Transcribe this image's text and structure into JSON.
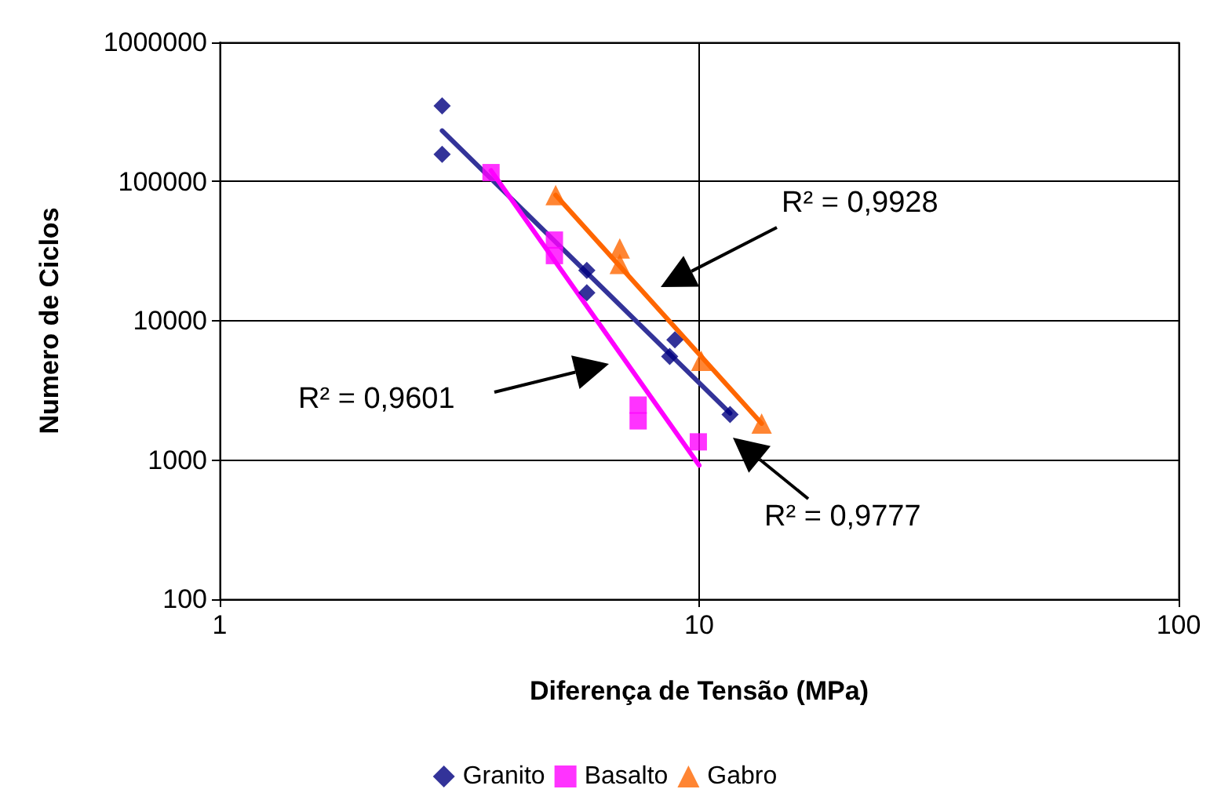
{
  "chart_data": {
    "type": "scatter",
    "xlabel": "Diferença de Tensão (MPa)",
    "ylabel": "Numero de Ciclos",
    "log": "xy",
    "grid": true,
    "legend": "bottom",
    "xlim": [
      1,
      100
    ],
    "xticks": [
      1,
      10,
      100
    ],
    "ylim": [
      100,
      1000000
    ],
    "yticks": [
      100,
      1000,
      10000,
      100000,
      1000000
    ],
    "series": [
      {
        "name": "Granito",
        "color": "#000080",
        "marker": "diamond",
        "x": [
          2.91,
          2.91,
          5.83,
          5.83,
          8.9,
          8.68,
          11.6
        ],
        "values": [
          350000,
          157000,
          23000,
          15900,
          7300,
          5540,
          2120
        ]
      },
      {
        "name": "Basalto",
        "color": "#ff00ff",
        "marker": "square",
        "x": [
          3.68,
          4.99,
          4.99,
          7.46,
          7.46,
          9.96
        ],
        "values": [
          116000,
          38000,
          29400,
          2480,
          1910,
          1350
        ]
      },
      {
        "name": "Gabro",
        "color": "#ff6600",
        "marker": "triangle",
        "x": [
          5.02,
          6.83,
          6.83,
          10.1,
          13.5
        ],
        "values": [
          80000,
          33100,
          25600,
          5160,
          1830
        ]
      },
      {
        "type": "line",
        "color": "#333399",
        "marker": "none",
        "x": [
          2.91,
          11.6
        ],
        "values": [
          232000,
          2170
        ]
      },
      {
        "type": "line",
        "color": "#ff00ff",
        "marker": "none",
        "x": [
          3.68,
          10
        ],
        "values": [
          120000,
          915
        ]
      },
      {
        "type": "line",
        "color": "#ff6600",
        "marker": "none",
        "x": [
          5.02,
          13.5
        ],
        "values": [
          80000,
          1830
        ]
      }
    ],
    "annotations": [
      "R² = 0,9928",
      "R² = 0,9601",
      "R² = 0,9777"
    ]
  }
}
